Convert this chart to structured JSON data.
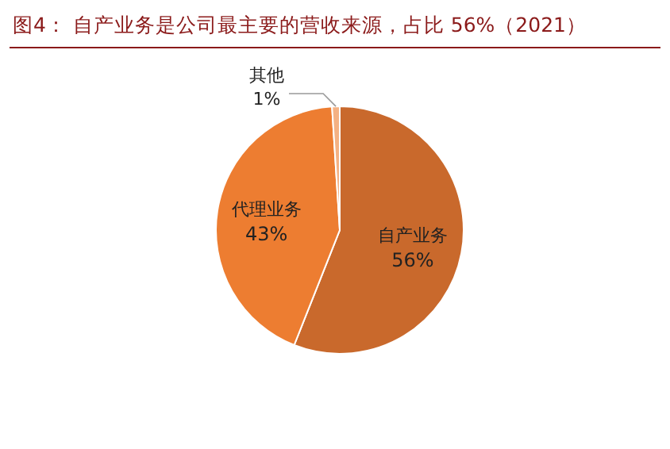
{
  "chart_data": {
    "type": "pie",
    "title": "图4：  自产业务是公司最主要的营收来源，占比 56%（2021）",
    "categories": [
      "自产业务",
      "代理业务",
      "其他"
    ],
    "values": [
      56,
      43,
      1
    ],
    "colors": [
      "#c9692c",
      "#ed7d31",
      "#f4b183"
    ],
    "value_labels": [
      "56%",
      "43%",
      "1%"
    ]
  }
}
